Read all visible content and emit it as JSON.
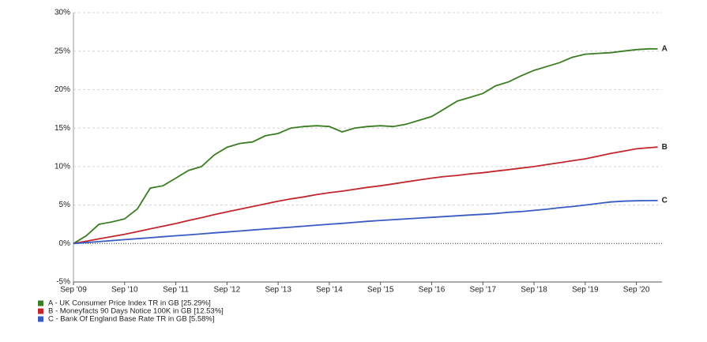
{
  "chart_data": {
    "type": "line",
    "x": [
      "2009-09",
      "2009-12",
      "2010-03",
      "2010-06",
      "2010-09",
      "2010-12",
      "2011-03",
      "2011-06",
      "2011-09",
      "2011-12",
      "2012-03",
      "2012-06",
      "2012-09",
      "2012-12",
      "2013-03",
      "2013-06",
      "2013-09",
      "2013-12",
      "2014-03",
      "2014-06",
      "2014-09",
      "2014-12",
      "2015-03",
      "2015-06",
      "2015-09",
      "2015-12",
      "2016-03",
      "2016-06",
      "2016-09",
      "2016-12",
      "2017-03",
      "2017-06",
      "2017-09",
      "2017-12",
      "2018-03",
      "2018-06",
      "2018-09",
      "2018-12",
      "2019-03",
      "2019-06",
      "2019-09",
      "2019-12",
      "2020-03",
      "2020-06",
      "2020-09",
      "2020-12",
      "2021-02"
    ],
    "series": [
      {
        "name": "A - UK Consumer Price Index TR in GB [25.29%]",
        "label": "A",
        "color": "#3b7d23",
        "values": [
          0,
          1,
          2.5,
          2.8,
          3.2,
          4.5,
          7.2,
          7.5,
          8.5,
          9.5,
          10,
          11.5,
          12.5,
          13,
          13.2,
          14,
          14.3,
          15,
          15.2,
          15.3,
          15.2,
          14.5,
          15,
          15.2,
          15.3,
          15.2,
          15.5,
          16,
          16.5,
          17.5,
          18.5,
          19,
          19.5,
          20.5,
          21,
          21.8,
          22.5,
          23,
          23.5,
          24.2,
          24.6,
          24.7,
          24.8,
          25,
          25.2,
          25.3,
          25.29
        ]
      },
      {
        "name": "B - Moneyfacts 90 Days Notice 100K in GB [12.53%]",
        "label": "B",
        "color": "#c3262c",
        "values": [
          0,
          0.3,
          0.6,
          0.9,
          1.2,
          1.55,
          1.9,
          2.25,
          2.6,
          3.0,
          3.35,
          3.75,
          4.1,
          4.45,
          4.8,
          5.15,
          5.5,
          5.8,
          6.05,
          6.35,
          6.6,
          6.8,
          7.05,
          7.3,
          7.5,
          7.75,
          8.0,
          8.25,
          8.5,
          8.7,
          8.85,
          9.05,
          9.2,
          9.4,
          9.6,
          9.8,
          10.0,
          10.25,
          10.5,
          10.75,
          11.0,
          11.35,
          11.7,
          12.0,
          12.3,
          12.45,
          12.53
        ]
      },
      {
        "name": "C - Bank Of England Base Rate TR in GB [5.58%]",
        "label": "C",
        "color": "#3a5bc4",
        "values": [
          0,
          0.12,
          0.25,
          0.38,
          0.5,
          0.62,
          0.75,
          0.88,
          1.0,
          1.12,
          1.25,
          1.38,
          1.5,
          1.62,
          1.75,
          1.88,
          2.0,
          2.12,
          2.25,
          2.38,
          2.5,
          2.62,
          2.75,
          2.88,
          3.0,
          3.1,
          3.2,
          3.3,
          3.4,
          3.5,
          3.6,
          3.7,
          3.8,
          3.9,
          4.05,
          4.15,
          4.3,
          4.45,
          4.65,
          4.8,
          5.0,
          5.2,
          5.4,
          5.5,
          5.55,
          5.57,
          5.58
        ]
      }
    ],
    "xlim": [
      "2009-09",
      "2021-03"
    ],
    "xticks": [
      {
        "value": "2009-09",
        "label": "Sep '09"
      },
      {
        "value": "2010-09",
        "label": "Sep '10"
      },
      {
        "value": "2011-09",
        "label": "Sep '11"
      },
      {
        "value": "2012-09",
        "label": "Sep '12"
      },
      {
        "value": "2013-09",
        "label": "Sep '13"
      },
      {
        "value": "2014-09",
        "label": "Sep '14"
      },
      {
        "value": "2015-09",
        "label": "Sep '15"
      },
      {
        "value": "2016-09",
        "label": "Sep '16"
      },
      {
        "value": "2017-09",
        "label": "Sep '17"
      },
      {
        "value": "2018-09",
        "label": "Sep '18"
      },
      {
        "value": "2019-09",
        "label": "Sep '19"
      },
      {
        "value": "2020-09",
        "label": "Sep '20"
      }
    ],
    "ylim": [
      -5,
      30
    ],
    "yticks": [
      {
        "value": -5,
        "label": "-5%"
      },
      {
        "value": 0,
        "label": "0%"
      },
      {
        "value": 5,
        "label": "5%"
      },
      {
        "value": 10,
        "label": "10%"
      },
      {
        "value": 15,
        "label": "15%"
      },
      {
        "value": 20,
        "label": "20%"
      },
      {
        "value": 25,
        "label": "25%"
      },
      {
        "value": 30,
        "label": "30%"
      }
    ],
    "grid": true,
    "legend": "bottom-left"
  }
}
